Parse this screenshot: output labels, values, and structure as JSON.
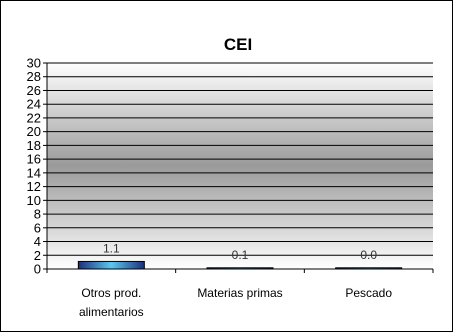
{
  "chart_data": {
    "type": "bar",
    "title": "CEI",
    "categories": [
      [
        "Otros prod.",
        "alimentarios"
      ],
      [
        "Materias primas"
      ],
      [
        "Pescado"
      ]
    ],
    "values": [
      1.1,
      0.1,
      0.0
    ],
    "data_labels": [
      "1.1",
      "0.1",
      "0.0"
    ],
    "ylim": [
      0,
      30
    ],
    "yticks": [
      "0",
      "2",
      "4",
      "6",
      "8",
      "10",
      "12",
      "14",
      "16",
      "18",
      "20",
      "22",
      "24",
      "26",
      "28",
      "30"
    ],
    "grid": true,
    "xlabel": "",
    "ylabel": "",
    "colors": {
      "bar": "#1f3a8a",
      "bar_highlight": "#5bc8f0",
      "grid": "#000000",
      "frame": "#000000"
    }
  }
}
